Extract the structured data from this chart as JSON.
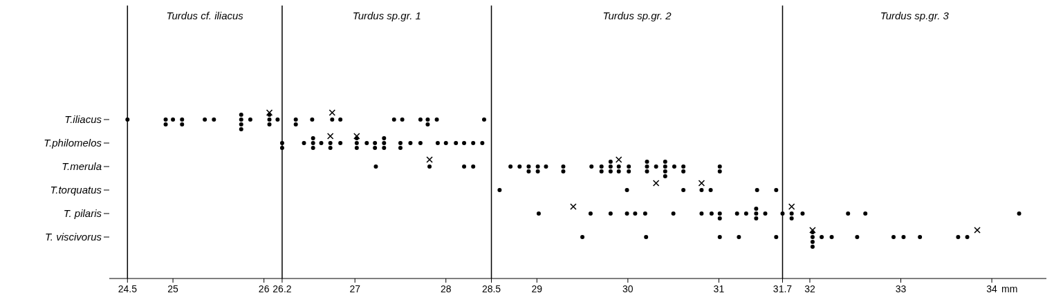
{
  "chart_data": {
    "type": "scatter",
    "orientation": "horizontal",
    "xlabel": "mm",
    "xlim": [
      24.3,
      34.6
    ],
    "xticks": [
      24.5,
      25,
      26,
      26.2,
      27,
      28,
      28.5,
      29,
      30,
      31,
      31.7,
      32,
      33,
      34
    ],
    "categories": [
      "T.iliacus",
      "T.philomelos",
      "T.merula",
      "T.torquatus",
      "T. pilaris",
      "T. viscivorus"
    ],
    "grid": false,
    "ref_lines": [
      {
        "axis": "x",
        "value": 24.5,
        "color": "#000000"
      },
      {
        "axis": "x",
        "value": 26.2,
        "color": "#000000"
      },
      {
        "axis": "x",
        "value": 28.5,
        "color": "#000000"
      },
      {
        "axis": "x",
        "value": 31.7,
        "color": "#000000"
      }
    ],
    "annotations": [
      "Turdus cf. iliacus",
      "Turdus sp.gr. 1",
      "Turdus sp.gr. 2",
      "Turdus sp.gr. 3"
    ],
    "series": [
      {
        "color": "#000000",
        "marker": "circle",
        "x": [
          "T.iliacus",
          "T.iliacus",
          "T.iliacus",
          "T.iliacus",
          "T.iliacus",
          "T.iliacus",
          "T.iliacus",
          "T.iliacus",
          "T.iliacus",
          "T.iliacus",
          "T.iliacus",
          "T.iliacus",
          "T.iliacus",
          "T.iliacus",
          "T.iliacus",
          "T.iliacus",
          "T.iliacus",
          "T.iliacus",
          "T.iliacus",
          "T.iliacus",
          "T.iliacus",
          "T.iliacus",
          "T.iliacus",
          "T.iliacus",
          "T.iliacus",
          "T.iliacus",
          "T.iliacus",
          "T.iliacus",
          "T.iliacus"
        ],
        "values": [
          24.5,
          24.92,
          24.92,
          25.0,
          25.1,
          25.1,
          25.35,
          25.45,
          25.75,
          25.75,
          25.75,
          25.75,
          25.85,
          26.06,
          26.06,
          26.06,
          26.15,
          26.35,
          26.35,
          26.53,
          26.75,
          26.84,
          27.43,
          27.52,
          27.72,
          27.8,
          27.8,
          27.9,
          28.42
        ]
      },
      {
        "color": "#000000",
        "marker": "circle",
        "x": [
          "T.philomelos",
          "T.philomelos",
          "T.philomelos",
          "T.philomelos",
          "T.philomelos",
          "T.philomelos",
          "T.philomelos",
          "T.philomelos",
          "T.philomelos",
          "T.philomelos",
          "T.philomelos",
          "T.philomelos",
          "T.philomelos",
          "T.philomelos",
          "T.philomelos",
          "T.philomelos",
          "T.philomelos",
          "T.philomelos",
          "T.philomelos",
          "T.philomelos",
          "T.philomelos",
          "T.philomelos",
          "T.philomelos",
          "T.philomelos",
          "T.philomelos",
          "T.philomelos",
          "T.philomelos",
          "T.philomelos",
          "T.philomelos"
        ],
        "values": [
          26.2,
          26.2,
          26.44,
          26.54,
          26.54,
          26.54,
          26.63,
          26.73,
          26.73,
          26.84,
          27.02,
          27.02,
          27.02,
          27.13,
          27.22,
          27.22,
          27.32,
          27.32,
          27.32,
          27.5,
          27.5,
          27.61,
          27.72,
          27.91,
          28.0,
          28.11,
          28.2,
          28.3,
          28.4
        ]
      },
      {
        "color": "#000000",
        "marker": "circle",
        "x": [
          "T.merula",
          "T.merula",
          "T.merula",
          "T.merula",
          "T.merula",
          "T.merula",
          "T.merula",
          "T.merula",
          "T.merula",
          "T.merula",
          "T.merula",
          "T.merula",
          "T.merula",
          "T.merula",
          "T.merula",
          "T.merula",
          "T.merula",
          "T.merula",
          "T.merula",
          "T.merula",
          "T.merula",
          "T.merula",
          "T.merula",
          "T.merula",
          "T.merula",
          "T.merula",
          "T.merula",
          "T.merula",
          "T.merula",
          "T.merula",
          "T.merula",
          "T.merula",
          "T.merula",
          "T.merula",
          "T.merula",
          "T.merula"
        ],
        "values": [
          27.23,
          27.82,
          28.2,
          28.3,
          28.71,
          28.81,
          28.91,
          28.91,
          29.01,
          29.01,
          29.1,
          29.29,
          29.29,
          29.6,
          29.71,
          29.71,
          29.81,
          29.81,
          29.81,
          29.9,
          29.9,
          30.01,
          30.01,
          30.21,
          30.21,
          30.21,
          30.31,
          30.41,
          30.41,
          30.41,
          30.41,
          30.51,
          30.61,
          30.61,
          31.01,
          31.01
        ]
      },
      {
        "color": "#000000",
        "marker": "circle",
        "x": [
          "T.torquatus",
          "T.torquatus",
          "T.torquatus",
          "T.torquatus",
          "T.torquatus",
          "T.torquatus",
          "T.torquatus"
        ],
        "values": [
          28.59,
          29.99,
          30.61,
          30.81,
          30.91,
          31.42,
          31.63
        ]
      },
      {
        "color": "#000000",
        "marker": "circle",
        "x": [
          "T. pilaris",
          "T. pilaris",
          "T. pilaris",
          "T. pilaris",
          "T. pilaris",
          "T. pilaris",
          "T. pilaris",
          "T. pilaris",
          "T. pilaris",
          "T. pilaris",
          "T. pilaris",
          "T. pilaris",
          "T. pilaris",
          "T. pilaris",
          "T. pilaris",
          "T. pilaris",
          "T. pilaris",
          "T. pilaris",
          "T. pilaris",
          "T. pilaris",
          "T. pilaris",
          "T. pilaris",
          "T. pilaris",
          "T. pilaris"
        ],
        "values": [
          29.02,
          29.59,
          29.81,
          29.99,
          30.08,
          30.19,
          30.5,
          30.81,
          30.92,
          31.01,
          31.01,
          31.2,
          31.3,
          31.41,
          31.41,
          31.41,
          31.51,
          31.7,
          31.8,
          31.8,
          31.92,
          32.42,
          32.61,
          34.3
        ]
      },
      {
        "color": "#000000",
        "marker": "circle",
        "x": [
          "T. viscivorus",
          "T. viscivorus",
          "T. viscivorus",
          "T. viscivorus",
          "T. viscivorus",
          "T. viscivorus",
          "T. viscivorus",
          "T. viscivorus",
          "T. viscivorus",
          "T. viscivorus",
          "T. viscivorus",
          "T. viscivorus",
          "T. viscivorus",
          "T. viscivorus",
          "T. viscivorus",
          "T. viscivorus",
          "T. viscivorus"
        ],
        "values": [
          29.5,
          30.2,
          31.01,
          31.22,
          31.63,
          32.03,
          32.03,
          32.03,
          32.03,
          32.13,
          32.24,
          32.52,
          32.92,
          33.03,
          33.21,
          33.63,
          33.73
        ]
      },
      {
        "color": "#000000",
        "marker": "cross",
        "x": [
          "T.iliacus",
          "T.iliacus",
          "T.philomelos",
          "T.philomelos",
          "T.merula",
          "T.merula",
          "T.torquatus",
          "T.torquatus",
          "T. pilaris",
          "T. pilaris",
          "T. viscivorus",
          "T. viscivorus"
        ],
        "values": [
          26.06,
          26.75,
          26.73,
          27.02,
          27.82,
          29.9,
          30.31,
          30.81,
          29.4,
          31.8,
          32.03,
          33.84
        ]
      }
    ]
  }
}
